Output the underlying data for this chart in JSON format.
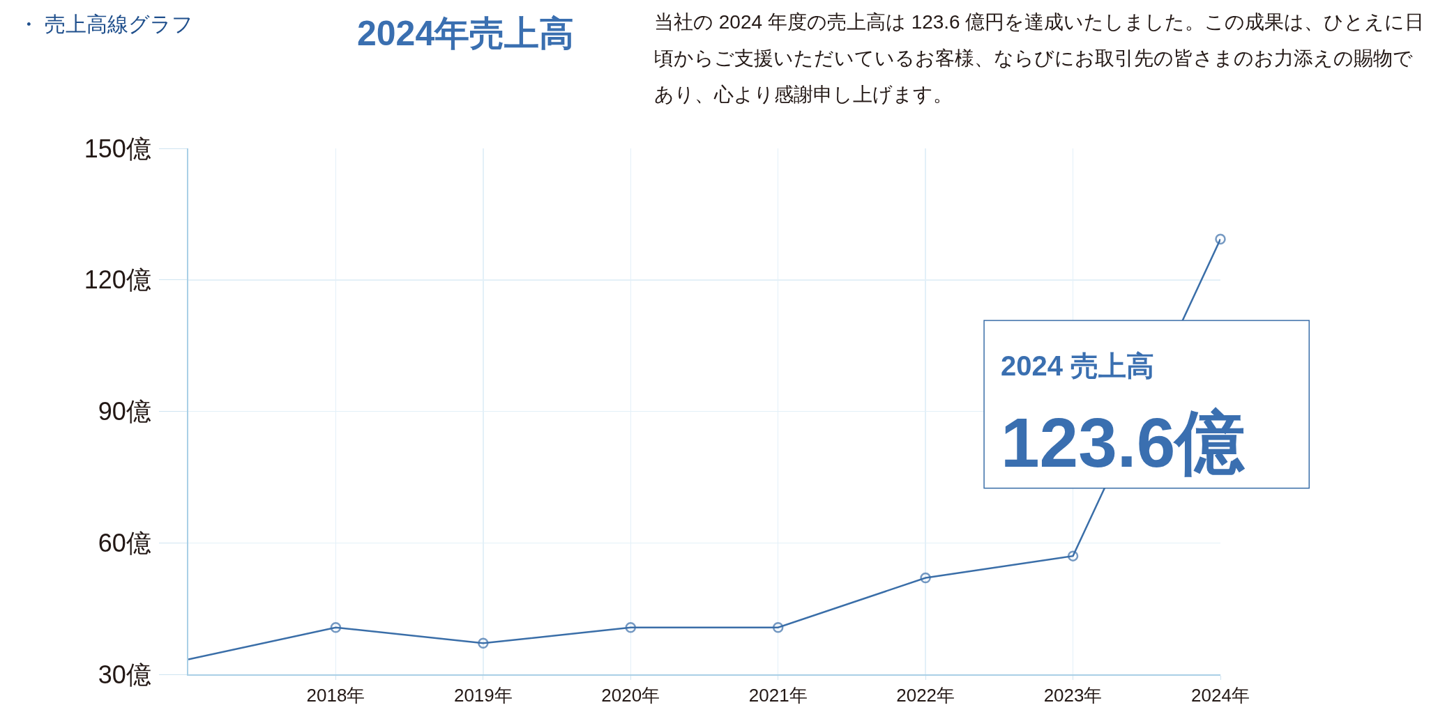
{
  "chart_data": {
    "type": "line",
    "title": "・ 売上高線グラフ",
    "subtitle": "2024年売上高",
    "annotations": [
      "当社の 2024 年度の売上高は 123.6 億円を達成いたしました。この成果は、ひとえに日頃からご支援いただいているお客様、ならびにお取引先の皆さまのお力添えの賜物であり、心より感謝申し上げます。",
      "2024 売上高\n123.6億"
    ],
    "categories": [
      null,
      "2018年",
      "2019年",
      "2020年",
      "2021年",
      "2022年",
      "2023年",
      "2024年"
    ],
    "series": [
      {
        "color": "#3a6ea8",
        "values": [
          33.4,
          40.7,
          37.1,
          40.7,
          40.7,
          52,
          57,
          129.3
        ]
      }
    ],
    "ylim": [
      30,
      150
    ],
    "yticks": [
      {
        "value": 30,
        "label": "30億"
      },
      {
        "value": 60,
        "label": "60億"
      },
      {
        "value": 90,
        "label": "90億"
      },
      {
        "value": 120,
        "label": "120億"
      },
      {
        "value": 150,
        "label": "150億"
      }
    ],
    "grid": true,
    "marker": "circle",
    "line_style": "solid",
    "legend": false
  }
}
